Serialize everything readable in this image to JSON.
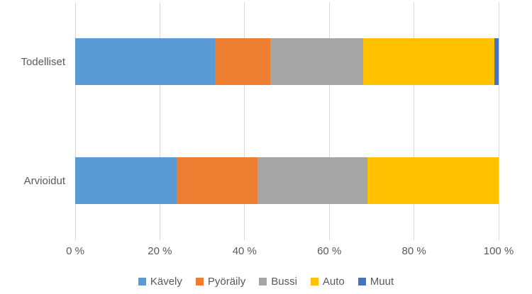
{
  "chart_data": {
    "type": "bar",
    "orientation": "horizontal",
    "stacked": true,
    "title": "",
    "xlabel": "",
    "ylabel": "",
    "unit": "%",
    "categories": [
      "Todelliset",
      "Arvioidut"
    ],
    "series": [
      {
        "name": "Kävely",
        "color": "#5B9BD5",
        "values": [
          33,
          24
        ]
      },
      {
        "name": "Pyöräily",
        "color": "#ED7D31",
        "values": [
          13,
          19
        ]
      },
      {
        "name": "Bussi",
        "color": "#A5A5A5",
        "values": [
          22,
          26
        ]
      },
      {
        "name": "Auto",
        "color": "#FFC000",
        "values": [
          31,
          31
        ]
      },
      {
        "name": "Muut",
        "color": "#4472C4",
        "values": [
          1,
          0
        ]
      }
    ],
    "x_axis": {
      "min": 0,
      "max": 100,
      "tick_values": [
        0,
        20,
        40,
        60,
        80,
        100
      ],
      "tick_labels": [
        "0 %",
        "20 %",
        "40 %",
        "60 %",
        "80 %",
        "100 %"
      ]
    },
    "grid": true,
    "legend_position": "bottom"
  },
  "style": {
    "gridline_color": "#D9D9D9",
    "text_color": "#595959",
    "background": "#FFFFFF"
  }
}
